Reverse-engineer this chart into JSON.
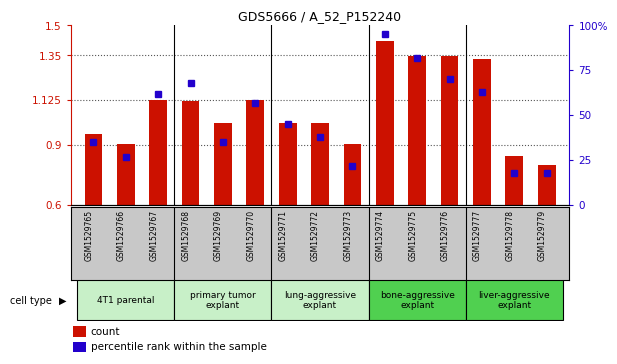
{
  "title": "GDS5666 / A_52_P152240",
  "samples": [
    "GSM1529765",
    "GSM1529766",
    "GSM1529767",
    "GSM1529768",
    "GSM1529769",
    "GSM1529770",
    "GSM1529771",
    "GSM1529772",
    "GSM1529773",
    "GSM1529774",
    "GSM1529775",
    "GSM1529776",
    "GSM1529777",
    "GSM1529778",
    "GSM1529779"
  ],
  "counts": [
    0.955,
    0.905,
    1.125,
    1.12,
    1.01,
    1.125,
    1.01,
    1.01,
    0.905,
    1.42,
    1.345,
    1.345,
    1.33,
    0.845,
    0.8
  ],
  "percentiles": [
    35,
    27,
    62,
    68,
    35,
    57,
    45,
    38,
    22,
    95,
    82,
    70,
    63,
    18,
    18
  ],
  "cell_types": [
    {
      "label": "4T1 parental",
      "start": 0,
      "end": 3,
      "color": "#c8f0c8"
    },
    {
      "label": "primary tumor\nexplant",
      "start": 3,
      "end": 6,
      "color": "#c8f0c8"
    },
    {
      "label": "lung-aggressive\nexplant",
      "start": 6,
      "end": 9,
      "color": "#c8f0c8"
    },
    {
      "label": "bone-aggressive\nexplant",
      "start": 9,
      "end": 12,
      "color": "#50d050"
    },
    {
      "label": "liver-aggressive\nexplant",
      "start": 12,
      "end": 15,
      "color": "#50d050"
    }
  ],
  "ylim_left": [
    0.6,
    1.5
  ],
  "ylim_right": [
    0,
    100
  ],
  "yticks_left": [
    0.6,
    0.9,
    1.125,
    1.35,
    1.5
  ],
  "ytick_labels_left": [
    "0.6",
    "0.9",
    "1.125",
    "1.35",
    "1.5"
  ],
  "yticks_right": [
    0,
    25,
    50,
    75,
    100
  ],
  "ytick_labels_right": [
    "0",
    "25",
    "50",
    "75",
    "100%"
  ],
  "bar_color": "#cc1100",
  "marker_color": "#2200cc",
  "grid_color": "#888888",
  "bg_color": "#ffffff",
  "sample_bg_color": "#c8c8c8",
  "bar_width": 0.55,
  "group_boundaries": [
    3,
    6,
    9,
    12
  ]
}
